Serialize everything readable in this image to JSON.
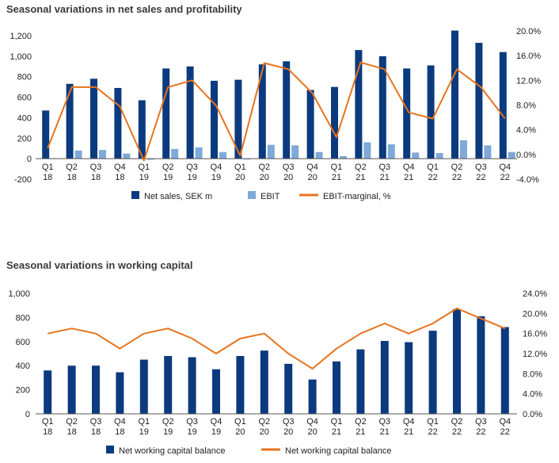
{
  "chart_data": [
    {
      "type": "bar",
      "title": "Seasonal variations in net sales and profitability",
      "categories": [
        "Q1 18",
        "Q2 18",
        "Q3 18",
        "Q4 18",
        "Q1 19",
        "Q2 19",
        "Q3 19",
        "Q4 19",
        "Q1 20",
        "Q2 20",
        "Q3 20",
        "Q4 20",
        "Q1 21",
        "Q2 21",
        "Q3 21",
        "Q4 21",
        "Q1 22",
        "Q2 22",
        "Q3 22",
        "Q4 22"
      ],
      "y_left_ticks": [
        "-200",
        "0",
        "200",
        "400",
        "600",
        "800",
        "1,000",
        "1,200"
      ],
      "y_right_ticks": [
        "-4.0%",
        "0.0%",
        "4.0%",
        "8.0%",
        "12.0%",
        "16.0%",
        "20.0%"
      ],
      "ylim_left": [
        -200,
        1300
      ],
      "ylim_right": [
        -4,
        20
      ],
      "series": [
        {
          "name": "Net sales, SEK m",
          "type": "bar",
          "axis": "left",
          "color": "#0b3a7e",
          "values": [
            470,
            730,
            780,
            690,
            570,
            880,
            900,
            760,
            770,
            920,
            950,
            670,
            700,
            1060,
            1000,
            880,
            910,
            1250,
            1130,
            1040
          ]
        },
        {
          "name": "EBIT",
          "type": "bar",
          "axis": "left",
          "color": "#7fa9d8",
          "values": [
            5,
            80,
            85,
            50,
            -10,
            95,
            110,
            65,
            0,
            135,
            130,
            65,
            25,
            160,
            140,
            60,
            55,
            180,
            130,
            65
          ]
        },
        {
          "name": "EBIT-marginal, %",
          "type": "line",
          "axis": "right",
          "color": "#e8731c",
          "values": [
            1.0,
            10.9,
            10.9,
            7.8,
            -1.0,
            10.9,
            12.0,
            7.9,
            -0.2,
            14.8,
            13.8,
            9.9,
            2.8,
            14.9,
            13.8,
            6.8,
            5.8,
            13.8,
            10.9,
            5.8
          ]
        }
      ],
      "grid": false,
      "legend": "bottom"
    },
    {
      "type": "bar",
      "title": "Seasonal variations in working capital",
      "categories": [
        "Q1 18",
        "Q2 18",
        "Q3 18",
        "Q4 18",
        "Q1 19",
        "Q2 19",
        "Q3 19",
        "Q4 19",
        "Q1 20",
        "Q2 20",
        "Q3 20",
        "Q4 20",
        "Q1 21",
        "Q2 21",
        "Q3 21",
        "Q4 21",
        "Q1 22",
        "Q2 22",
        "Q3 22",
        "Q4 22"
      ],
      "y_left_ticks": [
        "0",
        "200",
        "400",
        "600",
        "800",
        "1,000"
      ],
      "y_right_ticks": [
        "0.0%",
        "4.0%",
        "8.0%",
        "12.0%",
        "16.0%",
        "20.0%",
        "24.0%"
      ],
      "ylim_left": [
        0,
        1000
      ],
      "ylim_right": [
        0,
        24
      ],
      "series": [
        {
          "name": "Net working capital balance",
          "type": "bar",
          "axis": "left",
          "color": "#0b3a7e",
          "values": [
            360,
            400,
            400,
            345,
            450,
            480,
            470,
            370,
            480,
            525,
            415,
            285,
            435,
            535,
            605,
            595,
            690,
            870,
            810,
            720
          ]
        },
        {
          "name": "Net working capital balance",
          "type": "line",
          "axis": "right",
          "color": "#e8731c",
          "values": [
            16,
            17,
            16,
            13,
            16,
            17,
            15,
            12,
            15,
            16,
            12,
            9,
            13,
            16,
            18,
            16,
            18,
            21,
            19,
            17
          ]
        }
      ],
      "grid": false,
      "legend": "bottom"
    }
  ]
}
